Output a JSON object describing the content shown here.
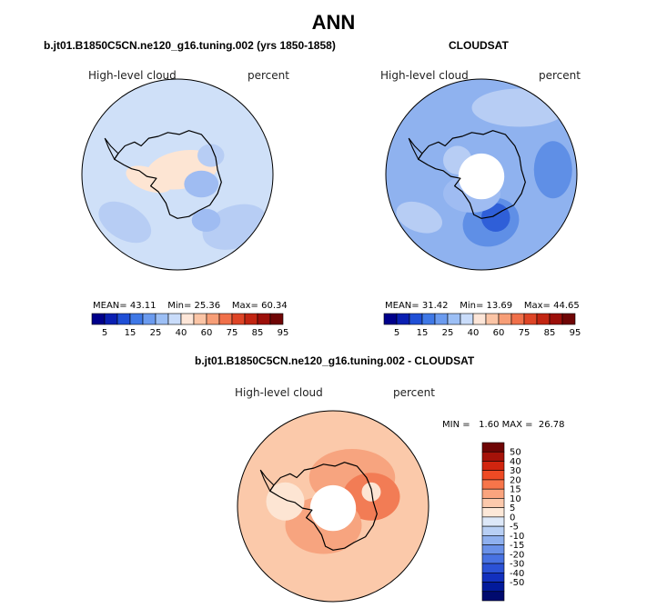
{
  "title": "ANN",
  "panels": [
    {
      "case": "b.jt01.B1850C5CN.ne120_g16.tuning.002 (yrs 1850-1858)",
      "field": "High-level cloud",
      "units": "percent",
      "stats": {
        "mean_label": "MEAN=",
        "mean": "43.11",
        "min_label": "Min=",
        "min": "25.36",
        "max_label": "Max=",
        "max": "60.34"
      }
    },
    {
      "case": "CLOUDSAT",
      "field": "High-level cloud",
      "units": "percent",
      "stats": {
        "mean_label": "MEAN=",
        "mean": "31.42",
        "min_label": "Min=",
        "min": "13.69",
        "max_label": "Max=",
        "max": "44.65"
      }
    },
    {
      "case": "b.jt01.B1850C5CN.ne120_g16.tuning.002 - CLOUDSAT",
      "field": "High-level cloud",
      "units": "percent",
      "stats": {
        "min_label": "MIN =",
        "min": "1.60",
        "max_label": "MAX =",
        "max": "26.78"
      }
    }
  ],
  "colorbar_abs": {
    "colors": [
      "#00008b",
      "#0a1fb2",
      "#1f4fd6",
      "#3f78e6",
      "#6b9bef",
      "#9cbff5",
      "#c9dcfa",
      "#fde6d8",
      "#fbc5a6",
      "#f79e77",
      "#f0704a",
      "#de4526",
      "#c22512",
      "#9c0f09",
      "#6f0505"
    ],
    "tick_labels": [
      "5",
      "15",
      "25",
      "40",
      "60",
      "75",
      "85",
      "95"
    ]
  },
  "colorbar_diff": {
    "colors": [
      "#6f0505",
      "#a51209",
      "#d1250f",
      "#ee4a24",
      "#f7754a",
      "#faa47e",
      "#fcc9ac",
      "#fde8d8",
      "#dde8f8",
      "#b8cff4",
      "#8fb0ee",
      "#6a91e8",
      "#4872e2",
      "#2b52d6",
      "#1230be",
      "#021a9b",
      "#000a6e"
    ],
    "tick_labels": [
      "50",
      "40",
      "30",
      "20",
      "15",
      "10",
      "5",
      "0",
      "-5",
      "-10",
      "-15",
      "-20",
      "-30",
      "-40",
      "-50"
    ]
  },
  "map_colors": {
    "fill_model": "#cfe0f8",
    "fill_obs": "#8fb2ef",
    "fill_diff": "#fbc9aa",
    "patch_light": "#b7cdf4",
    "patch_mid": "#9fbcf2",
    "patch_dark": "#5f8fe6",
    "patch_darker": "#2f5fd8",
    "patch_warm": "#fde5d3",
    "patch_warm2": "#f7a47f",
    "patch_warm3": "#f27c55",
    "pole_hole": "#ffffff",
    "coast": "#000000"
  }
}
